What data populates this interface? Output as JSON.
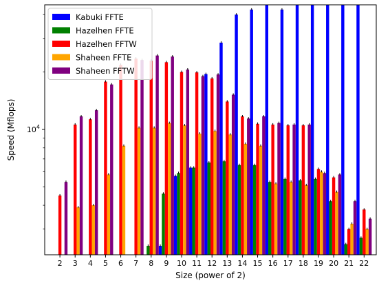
{
  "chart_data": {
    "type": "bar",
    "xlabel": "Size (power of 2)",
    "ylabel": "Speed (Mflops)",
    "yscale": "log",
    "ylim": [
      2200,
      45000
    ],
    "ytick_major": [
      {
        "value": 10000,
        "base": "10",
        "exp": "4"
      }
    ],
    "ytick_minor": [
      3000,
      4000,
      5000,
      6000,
      7000,
      8000,
      9000,
      20000,
      30000,
      40000
    ],
    "legend_position": "top-left",
    "categories": [
      "2",
      "3",
      "4",
      "5",
      "6",
      "7",
      "8",
      "9",
      "10",
      "11",
      "12",
      "13",
      "14",
      "15",
      "16",
      "17",
      "18",
      "19",
      "20",
      "21",
      "22"
    ],
    "series": [
      {
        "name": "Kabuki FFTE",
        "color": "#0000ff",
        "values": [
          null,
          null,
          null,
          null,
          null,
          null,
          null,
          2450,
          5700,
          6300,
          19500,
          28500,
          40000,
          42500,
          45500,
          42500,
          46000,
          48000,
          48500,
          50000,
          51500
        ]
      },
      {
        "name": "Hazelhen FFTE",
        "color": "#008000",
        "values": [
          null,
          null,
          null,
          null,
          null,
          null,
          2450,
          4600,
          5900,
          6300,
          6700,
          6800,
          6500,
          6500,
          5300,
          5500,
          5400,
          5500,
          4200,
          2500,
          2700
        ]
      },
      {
        "name": "Hazelhen FFTW",
        "color": "#ff0000",
        "values": [
          4500,
          10600,
          11300,
          17800,
          21800,
          23500,
          22900,
          22500,
          20000,
          19900,
          18500,
          14000,
          11700,
          10700,
          10600,
          10500,
          10500,
          6200,
          5600,
          3000,
          3800
        ]
      },
      {
        "name": "Shaheen FFTE",
        "color": "#ffa500",
        "values": [
          null,
          3900,
          4000,
          5800,
          8200,
          10200,
          10200,
          10800,
          10500,
          9500,
          9800,
          9400,
          8400,
          8200,
          5200,
          5300,
          5100,
          6000,
          4700,
          3200,
          3000
        ]
      },
      {
        "name": "Shaheen FFTW",
        "color": "#800080",
        "values": [
          5300,
          11700,
          12600,
          17200,
          null,
          23100,
          24400,
          24100,
          20600,
          19000,
          19400,
          15200,
          11400,
          11700,
          10800,
          10600,
          10600,
          5900,
          5800,
          4200,
          3400
        ]
      }
    ]
  }
}
